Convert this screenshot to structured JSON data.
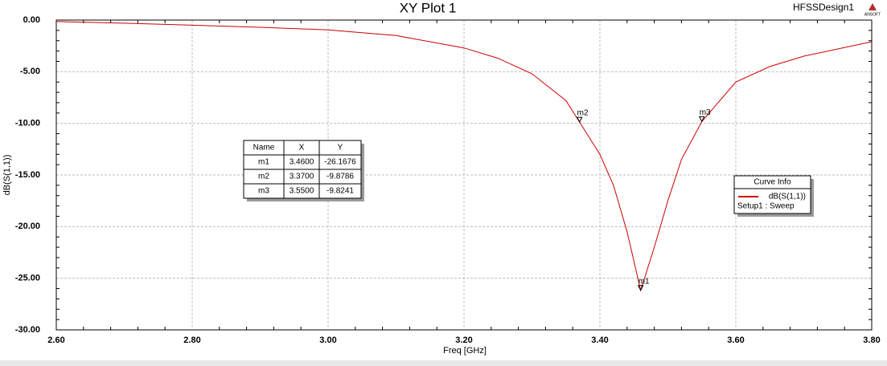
{
  "chart_data": {
    "type": "line",
    "title": "XY Plot 1",
    "design": "HFSSDesign1",
    "logo": "ANSOFT",
    "x_label": "Freq [GHz]",
    "y_label": "dB(S(1,1))",
    "xlim": [
      2.6,
      3.8
    ],
    "ylim": [
      -30,
      0
    ],
    "xticks": [
      {
        "value": 2.6,
        "label": "2.60"
      },
      {
        "value": 2.8,
        "label": "2.80"
      },
      {
        "value": 3.0,
        "label": "3.00"
      },
      {
        "value": 3.2,
        "label": "3.20"
      },
      {
        "value": 3.4,
        "label": "3.40"
      },
      {
        "value": 3.6,
        "label": "3.60"
      },
      {
        "value": 3.8,
        "label": "3.80"
      }
    ],
    "yticks": [
      {
        "value": 0,
        "label": "0.00"
      },
      {
        "value": -5,
        "label": "-5.00"
      },
      {
        "value": -10,
        "label": "-10.00"
      },
      {
        "value": -15,
        "label": "-15.00"
      },
      {
        "value": -20,
        "label": "-20.00"
      },
      {
        "value": -25,
        "label": "-25.00"
      },
      {
        "value": -30,
        "label": "-30.00"
      }
    ],
    "grid": true,
    "x": [
      2.6,
      2.7,
      2.8,
      2.9,
      3.0,
      3.1,
      3.2,
      3.25,
      3.3,
      3.35,
      3.37,
      3.4,
      3.42,
      3.44,
      3.46,
      3.48,
      3.5,
      3.52,
      3.55,
      3.6,
      3.65,
      3.7,
      3.75,
      3.8
    ],
    "series": [
      {
        "name": "dB(S(1,1))",
        "color": "#cc0000",
        "values": [
          -0.15,
          -0.3,
          -0.5,
          -0.7,
          -0.95,
          -1.5,
          -2.7,
          -3.7,
          -5.2,
          -7.8,
          -9.8786,
          -13.0,
          -16.0,
          -20.5,
          -26.1676,
          -22.0,
          -17.5,
          -13.5,
          -9.8241,
          -6.0,
          -4.5,
          -3.5,
          -2.8,
          -2.1
        ]
      }
    ],
    "legend": {
      "title": "Curve Info",
      "subtitle": "Setup1 : Sweep"
    },
    "marker_table": {
      "columns": [
        "Name",
        "X",
        "Y"
      ]
    },
    "markers": [
      {
        "name": "m1",
        "x": 3.46,
        "y": -26.1676,
        "x_label": "3.4600",
        "y_label": "-26.1676"
      },
      {
        "name": "m2",
        "x": 3.37,
        "y": -9.8786,
        "x_label": "3.3700",
        "y_label": "-9.8786"
      },
      {
        "name": "m3",
        "x": 3.55,
        "y": -9.8241,
        "x_label": "3.5500",
        "y_label": "-9.8241"
      }
    ]
  }
}
